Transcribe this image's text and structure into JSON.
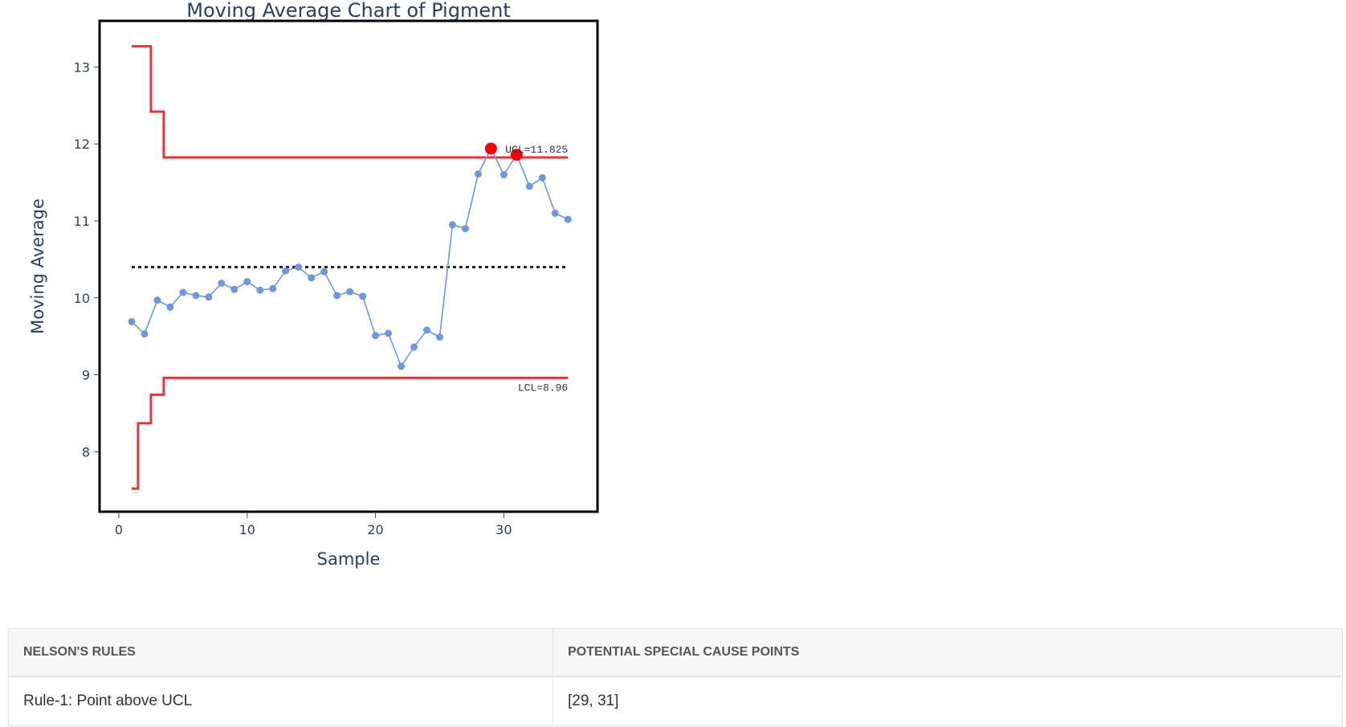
{
  "chart_data": {
    "type": "line",
    "title": "Moving Average Chart of Pigment",
    "xlabel": "Sample",
    "ylabel": "Moving Average",
    "xlim": [
      -1.5,
      37.3
    ],
    "ylim": [
      7.22,
      13.6
    ],
    "x_ticks": [
      0,
      10,
      20,
      30
    ],
    "y_ticks": [
      8,
      9,
      10,
      11,
      12,
      13
    ],
    "grid": false,
    "center_line": 10.4,
    "series": [
      {
        "x": [
          1,
          2,
          3,
          4,
          5,
          6,
          7,
          8,
          9,
          10,
          11,
          12,
          13,
          14,
          15,
          16,
          17,
          18,
          19,
          20,
          21,
          22,
          23,
          24,
          25,
          26,
          27,
          28,
          29,
          30,
          31,
          32,
          33,
          34,
          35
        ],
        "values": [
          9.69,
          9.53,
          9.97,
          9.88,
          10.07,
          10.03,
          10.01,
          10.19,
          10.11,
          10.21,
          10.1,
          10.12,
          10.35,
          10.4,
          10.26,
          10.34,
          10.03,
          10.08,
          10.02,
          9.51,
          9.54,
          9.11,
          9.36,
          9.58,
          9.49,
          10.95,
          10.9,
          11.61,
          11.94,
          11.6,
          11.86,
          11.45,
          11.56,
          11.1,
          11.02
        ],
        "color": "#6f96e0"
      }
    ],
    "ucl": {
      "steps": [
        {
          "x0": 1.0,
          "x1": 2.5,
          "value": 13.27
        },
        {
          "x0": 2.5,
          "x1": 3.5,
          "value": 12.42
        },
        {
          "x0": 3.5,
          "x1": 3.5,
          "value": 12.05
        },
        {
          "x0": 3.5,
          "x1": 35.0,
          "value": 11.825
        }
      ],
      "label": "UCL=11.825",
      "color": "#e8333c"
    },
    "lcl": {
      "steps": [
        {
          "x0": 1.0,
          "x1": 1.5,
          "value": 7.52
        },
        {
          "x0": 1.5,
          "x1": 2.5,
          "value": 8.37
        },
        {
          "x0": 2.5,
          "x1": 3.5,
          "value": 8.74
        },
        {
          "x0": 3.5,
          "x1": 35.0,
          "value": 8.96
        }
      ],
      "label": "LCL=8.96",
      "color": "#e8333c"
    },
    "special_points": {
      "x": [
        29,
        31
      ],
      "values": [
        11.94,
        11.86
      ],
      "color": "#ff0000"
    }
  },
  "table": {
    "headers": [
      "NELSON'S RULES",
      "POTENTIAL SPECIAL CAUSE POINTS"
    ],
    "rows": [
      {
        "rule": "Rule-1: Point above UCL",
        "points": "[29, 31]"
      }
    ]
  }
}
